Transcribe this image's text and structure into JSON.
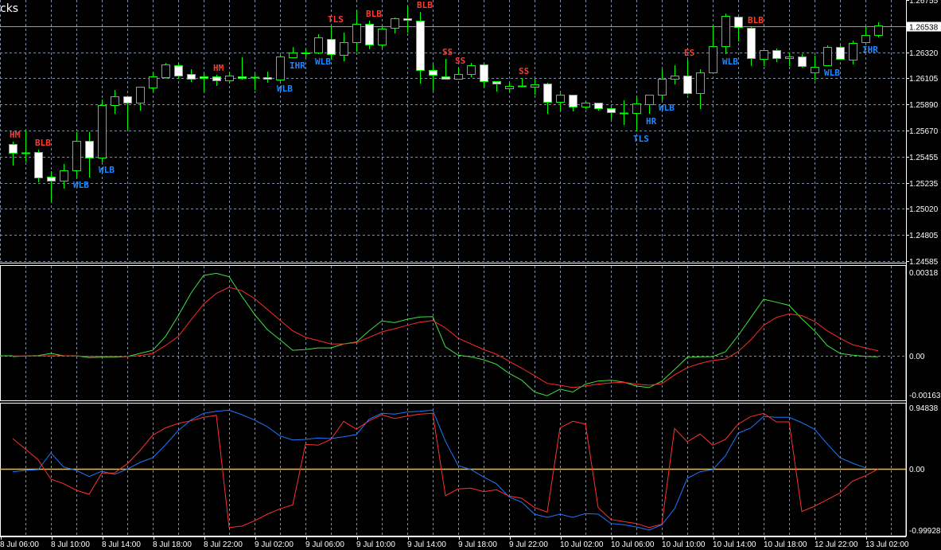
{
  "window_title_fragment": "cks",
  "colors": {
    "background": "#000000",
    "grid": "#7f8c9c",
    "candle_outline": "#00ff00",
    "bull_body": "#000000",
    "bear_body": "#ffffff",
    "bearish_pattern_label": "#ff3b30",
    "bullish_pattern_label": "#1e88ff",
    "bid_line": "#8a9bb0",
    "macd_main": "#40e040",
    "macd_signal": "#ff2a2a",
    "osc_blue": "#1e78ff",
    "osc_red": "#ff3030",
    "osc_zero": "#ffc000"
  },
  "chart_data": [
    {
      "type": "candlestick",
      "panel": "price",
      "bid_price": "1.26538",
      "y_tick_labels": [
        "1.26755",
        "1.26320",
        "1.26105",
        "1.25890",
        "1.25670",
        "1.25455",
        "1.25235",
        "1.25020",
        "1.24805",
        "1.24585"
      ],
      "ylim": [
        1.24585,
        1.26755
      ],
      "grid": true,
      "ohlc": [
        [
          1.25558,
          1.25578,
          1.25379,
          1.25485
        ],
        [
          1.25485,
          1.25677,
          1.25412,
          1.25485
        ],
        [
          1.25492,
          1.25511,
          1.2524,
          1.2528
        ],
        [
          1.25286,
          1.25333,
          1.25081,
          1.25253
        ],
        [
          1.25253,
          1.25392,
          1.25187,
          1.25339
        ],
        [
          1.25339,
          1.25657,
          1.2528,
          1.25584
        ],
        [
          1.25584,
          1.25657,
          1.2528,
          1.25445
        ],
        [
          1.25445,
          1.25928,
          1.25406,
          1.25882
        ],
        [
          1.25882,
          1.26008,
          1.25809,
          1.25955
        ],
        [
          1.25955,
          1.25955,
          1.25677,
          1.25902
        ],
        [
          1.25902,
          1.26034,
          1.25836,
          1.26034
        ],
        [
          1.26028,
          1.26154,
          1.25995,
          1.2612
        ],
        [
          1.26114,
          1.26233,
          1.26101,
          1.2622
        ],
        [
          1.26213,
          1.26226,
          1.26101,
          1.26127
        ],
        [
          1.2614,
          1.2618,
          1.26074,
          1.26101
        ],
        [
          1.2612,
          1.2614,
          1.25995,
          1.26107
        ],
        [
          1.2612,
          1.26134,
          1.26041,
          1.26087
        ],
        [
          1.26087,
          1.26154,
          1.26074,
          1.26127
        ],
        [
          1.2612,
          1.26279,
          1.26094,
          1.26107
        ],
        [
          1.26114,
          1.2614,
          1.26008,
          1.26114
        ],
        [
          1.26114,
          1.2616,
          1.26068,
          1.26101
        ],
        [
          1.26094,
          1.26299,
          1.26081,
          1.26286
        ],
        [
          1.26279,
          1.26365,
          1.26273,
          1.26319
        ],
        [
          1.26312,
          1.26346,
          1.26279,
          1.26319
        ],
        [
          1.26319,
          1.26471,
          1.26306,
          1.26445
        ],
        [
          1.26432,
          1.26538,
          1.26259,
          1.26306
        ],
        [
          1.26299,
          1.26485,
          1.26246,
          1.26405
        ],
        [
          1.26405,
          1.2667,
          1.26326,
          1.26557
        ],
        [
          1.26557,
          1.26584,
          1.26346,
          1.26385
        ],
        [
          1.26385,
          1.26538,
          1.26359,
          1.26518
        ],
        [
          1.26524,
          1.2661,
          1.26478,
          1.26604
        ],
        [
          1.26604,
          1.26703,
          1.26485,
          1.2659
        ],
        [
          1.26584,
          1.26657,
          1.26061,
          1.26173
        ],
        [
          1.26173,
          1.2622,
          1.26001,
          1.26134
        ],
        [
          1.2612,
          1.26266,
          1.26094,
          1.26101
        ],
        [
          1.26101,
          1.26193,
          1.26094,
          1.2614
        ],
        [
          1.2614,
          1.26233,
          1.26114,
          1.26213
        ],
        [
          1.2622,
          1.26233,
          1.26028,
          1.26081
        ],
        [
          1.26081,
          1.26081,
          1.25995,
          1.26061
        ],
        [
          1.26021,
          1.26068,
          1.25995,
          1.26041
        ],
        [
          1.26041,
          1.26107,
          1.26041,
          1.26041
        ],
        [
          1.26034,
          1.26101,
          1.25968,
          1.26054
        ],
        [
          1.26061,
          1.26068,
          1.25809,
          1.25909
        ],
        [
          1.25909,
          1.25981,
          1.25836,
          1.25968
        ],
        [
          1.25968,
          1.25968,
          1.25829,
          1.25869
        ],
        [
          1.25869,
          1.25915,
          1.25849,
          1.25902
        ],
        [
          1.25902,
          1.25902,
          1.25836,
          1.25856
        ],
        [
          1.25856,
          1.25862,
          1.25763,
          1.25823
        ],
        [
          1.25816,
          1.25922,
          1.25717,
          1.25816
        ],
        [
          1.25816,
          1.25948,
          1.25664,
          1.25895
        ],
        [
          1.25889,
          1.25968,
          1.25809,
          1.25968
        ],
        [
          1.25968,
          1.2618,
          1.25922,
          1.26101
        ],
        [
          1.26101,
          1.26213,
          1.26054,
          1.26127
        ],
        [
          1.26127,
          1.26259,
          1.25968,
          1.25981
        ],
        [
          1.25981,
          1.2618,
          1.25849,
          1.26154
        ],
        [
          1.26154,
          1.26544,
          1.26154,
          1.26372
        ],
        [
          1.26372,
          1.26643,
          1.26306,
          1.26624
        ],
        [
          1.26617,
          1.26617,
          1.26412,
          1.26531
        ],
        [
          1.26524,
          1.26531,
          1.26207,
          1.26273
        ],
        [
          1.26266,
          1.26339,
          1.26207,
          1.26339
        ],
        [
          1.26339,
          1.26352,
          1.2624,
          1.26273
        ],
        [
          1.26273,
          1.26319,
          1.26207,
          1.26286
        ],
        [
          1.26286,
          1.26306,
          1.26193,
          1.26207
        ],
        [
          1.26154,
          1.26293,
          1.26087,
          1.262
        ],
        [
          1.26213,
          1.26379,
          1.26213,
          1.26365
        ],
        [
          1.26365,
          1.26379,
          1.26259,
          1.26266
        ],
        [
          1.26259,
          1.26418,
          1.2622,
          1.26399
        ],
        [
          1.26405,
          1.26531,
          1.26405,
          1.26465
        ],
        [
          1.26465,
          1.26571,
          1.26445,
          1.26544
        ]
      ],
      "pattern_labels": [
        {
          "text": "HM",
          "bar": 0,
          "side": "above",
          "kind": "bearish"
        },
        {
          "text": "BLB",
          "bar": 2,
          "side": "above",
          "kind": "bearish"
        },
        {
          "text": "WLB",
          "bar": 5,
          "side": "below",
          "kind": "bullish"
        },
        {
          "text": "WLB",
          "bar": 7,
          "side": "below",
          "kind": "bullish"
        },
        {
          "text": "HM",
          "bar": 16,
          "side": "above",
          "kind": "bearish"
        },
        {
          "text": "WLB",
          "bar": 21,
          "side": "below",
          "kind": "bullish"
        },
        {
          "text": "IHR",
          "bar": 22,
          "side": "below",
          "kind": "bullish"
        },
        {
          "text": "WLB",
          "bar": 24,
          "side": "below",
          "kind": "bullish"
        },
        {
          "text": "TLS",
          "bar": 25,
          "side": "above",
          "kind": "bearish"
        },
        {
          "text": "BLB",
          "bar": 28,
          "side": "above",
          "kind": "bearish"
        },
        {
          "text": "BLB",
          "bar": 32,
          "side": "above",
          "kind": "bearish"
        },
        {
          "text": "SS",
          "bar": 34,
          "side": "above",
          "kind": "bearish"
        },
        {
          "text": "SS",
          "bar": 35,
          "side": "above",
          "kind": "bearish"
        },
        {
          "text": "SS",
          "bar": 40,
          "side": "above",
          "kind": "bearish"
        },
        {
          "text": "TLS",
          "bar": 49,
          "side": "below",
          "kind": "bullish"
        },
        {
          "text": "HR",
          "bar": 50,
          "side": "below",
          "kind": "bullish"
        },
        {
          "text": "WLB",
          "bar": 51,
          "side": "below",
          "kind": "bullish"
        },
        {
          "text": "ES",
          "bar": 53,
          "side": "above",
          "kind": "bearish"
        },
        {
          "text": "WLB",
          "bar": 56,
          "side": "below",
          "kind": "bullish"
        },
        {
          "text": "BLB",
          "bar": 58,
          "side": "above",
          "kind": "bearish"
        },
        {
          "text": "WLB",
          "bar": 64,
          "side": "below",
          "kind": "bullish"
        },
        {
          "text": "IHR",
          "bar": 67,
          "side": "below",
          "kind": "bullish"
        }
      ]
    },
    {
      "type": "line",
      "panel": "indicator-1",
      "y_tick_labels": [
        "0.00318",
        "0.00",
        "-0.00163"
      ],
      "ylim": [
        -0.00163,
        0.00318
      ],
      "series": [
        {
          "color": "#40e040",
          "values": [
            -3e-05,
            -1e-05,
            1e-05,
            9e-05,
            0,
            0,
            -7e-05,
            -5e-05,
            -5e-05,
            -3e-05,
            9e-05,
            0.00021,
            0.00073,
            0.00152,
            0.00238,
            0.00306,
            0.00314,
            0.00301,
            0.00227,
            0.00158,
            0.001,
            0.00061,
            0.00021,
            0.00024,
            0.0003,
            0.0003,
            0.00045,
            0.00052,
            0.00095,
            0.00133,
            0.00126,
            0.00139,
            0.00148,
            0.00149,
            0.00034,
            2e-05,
            -4e-05,
            -0.00015,
            -0.00032,
            -0.00067,
            -0.00093,
            -0.00138,
            -0.00152,
            -0.00127,
            -0.00138,
            -0.00108,
            -0.00096,
            -0.00093,
            -0.001,
            -0.00115,
            -0.00121,
            -0.00097,
            -0.00052,
            -6e-05,
            -4e-05,
            -3e-05,
            0.00015,
            0.00077,
            0.00146,
            0.00215,
            0.00204,
            0.00192,
            0.00141,
            0.00095,
            0.00039,
            9e-05,
            2e-05,
            -2e-05,
            -4e-05
          ]
        },
        {
          "color": "#ff2a2a",
          "values": [
            -1e-05,
            -1e-05,
            -1e-05,
            0,
            0,
            -1e-05,
            -2e-05,
            -2e-05,
            -2e-05,
            -3e-05,
            1e-05,
            9e-05,
            0.00039,
            0.00073,
            0.00136,
            0.00197,
            0.00238,
            0.00261,
            0.00248,
            0.00218,
            0.00177,
            0.00136,
            0.00095,
            0.0007,
            0.00058,
            0.00045,
            0.00045,
            0.0005,
            0.0007,
            0.00091,
            0.00103,
            0.00116,
            0.00128,
            0.00134,
            0.00106,
            0.00067,
            0.00045,
            0.00024,
            6e-05,
            -0.00021,
            -0.00047,
            -0.00076,
            -0.00105,
            -0.00112,
            -0.00121,
            -0.00115,
            -0.00108,
            -0.00103,
            -0.00101,
            -0.00108,
            -0.00112,
            -0.00106,
            -0.00073,
            -0.00045,
            -0.00029,
            -0.00018,
            -0.00012,
            0.00016,
            0.00061,
            0.00116,
            0.00146,
            0.00159,
            0.00153,
            0.00131,
            0.00095,
            0.00067,
            0.00042,
            0.0003,
            0.00019
          ]
        }
      ]
    },
    {
      "type": "line",
      "panel": "indicator-2",
      "y_tick_labels": [
        "0.94838",
        "0.00",
        "-0.99928"
      ],
      "ylim": [
        -0.99928,
        0.94838
      ],
      "zero_line": 0,
      "series": [
        {
          "color": "#1e78ff",
          "values": [
            -0.072,
            -0.051,
            -0.038,
            0.228,
            0.004,
            -0.051,
            -0.148,
            -0.063,
            -0.114,
            -0.029,
            0.076,
            0.152,
            0.354,
            0.582,
            0.75,
            0.856,
            0.889,
            0.907,
            0.835,
            0.75,
            0.645,
            0.497,
            0.434,
            0.443,
            0.464,
            0.455,
            0.484,
            0.519,
            0.763,
            0.856,
            0.844,
            0.877,
            0.889,
            0.907,
            0.414,
            0.025,
            -0.038,
            -0.156,
            -0.262,
            -0.472,
            -0.557,
            -0.746,
            -0.797,
            -0.746,
            -0.797,
            -0.737,
            -0.746,
            -0.894,
            -0.915,
            -0.949,
            -0.999,
            -0.915,
            -0.662,
            -0.177,
            -0.072,
            -0.038,
            0.181,
            0.54,
            0.624,
            0.806,
            0.793,
            0.793,
            0.708,
            0.603,
            0.371,
            0.152,
            0.063,
            -0.009,
            null
          ]
        },
        {
          "color": "#ff3030",
          "values": [
            0.455,
            0.287,
            0.118,
            -0.19,
            -0.262,
            -0.367,
            -0.43,
            -0.092,
            -0.092,
            0.054,
            0.266,
            0.51,
            0.624,
            0.696,
            0.737,
            0.793,
            0.826,
            -0.958,
            -0.936,
            -0.851,
            -0.746,
            -0.662,
            -0.598,
            0.363,
            0.35,
            0.443,
            0.73,
            0.603,
            0.737,
            0.835,
            0.772,
            0.813,
            0.844,
            0.856,
            -0.452,
            -0.345,
            -0.333,
            -0.388,
            -0.358,
            -0.459,
            -0.493,
            -0.641,
            -0.712,
            0.624,
            0.73,
            0.687,
            -0.641,
            -0.831,
            -0.864,
            -0.894,
            -0.958,
            -0.907,
            0.616,
            0.405,
            0.527,
            0.35,
            0.443,
            0.687,
            0.806,
            0.856,
            0.721,
            0.721,
            -0.705,
            -0.62,
            -0.515,
            -0.409,
            -0.219,
            -0.135,
            -0.029
          ]
        }
      ]
    }
  ],
  "x_tick_labels": [
    "8 Jul 06:00",
    "8 Jul 10:00",
    "8 Jul 14:00",
    "8 Jul 18:00",
    "8 Jul 22:00",
    "9 Jul 02:00",
    "9 Jul 06:00",
    "9 Jul 10:00",
    "9 Jul 14:00",
    "9 Jul 18:00",
    "9 Jul 22:00",
    "10 Jul 02:00",
    "10 Jul 06:00",
    "10 Jul 10:00",
    "10 Jul 14:00",
    "10 Jul 18:00",
    "12 Jul 22:00",
    "13 Jul 02:00"
  ]
}
